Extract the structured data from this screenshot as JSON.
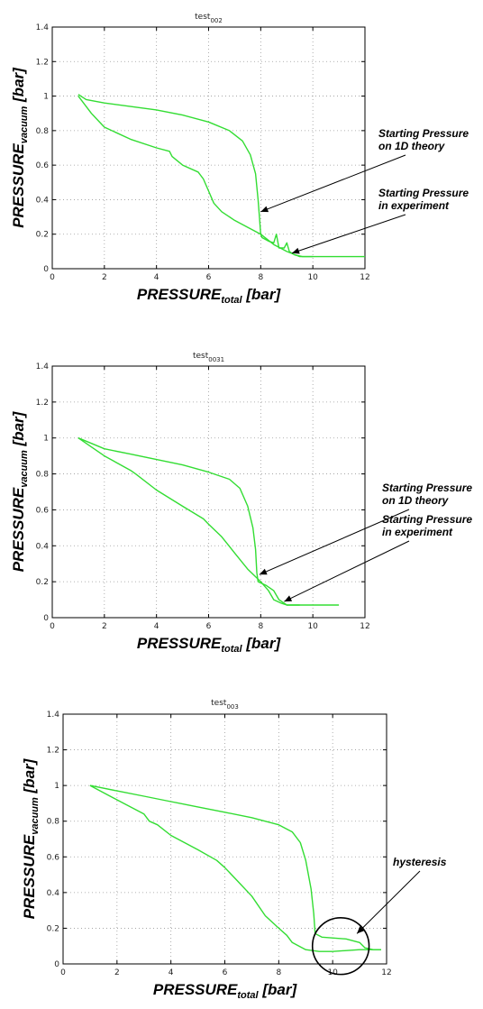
{
  "chart_data": [
    {
      "type": "line",
      "title": "test",
      "title_subscript": "002",
      "xlabel": "PRESSURE",
      "xlabel_subscript": "total",
      "xlabel_unit": " [bar]",
      "ylabel": "PRESSURE",
      "ylabel_subscript": "vacuum",
      "ylabel_unit": " [bar]",
      "xlim": [
        0,
        12
      ],
      "ylim": [
        0,
        1.4
      ],
      "xticks": [
        "0",
        "2",
        "4",
        "6",
        "8",
        "10",
        "12"
      ],
      "yticks": [
        "0",
        "0.2",
        "0.4",
        "0.6",
        "0.8",
        "1",
        "1.2",
        "1.4"
      ],
      "grid": true,
      "series": [
        {
          "color": "#33dd33",
          "points": [
            [
              1.0,
              1.01
            ],
            [
              1.3,
              0.98
            ],
            [
              2.0,
              0.96
            ],
            [
              3.0,
              0.94
            ],
            [
              4.0,
              0.92
            ],
            [
              5.0,
              0.89
            ],
            [
              6.0,
              0.85
            ],
            [
              6.8,
              0.8
            ],
            [
              7.3,
              0.74
            ],
            [
              7.6,
              0.66
            ],
            [
              7.8,
              0.55
            ],
            [
              7.9,
              0.4
            ],
            [
              7.95,
              0.3
            ],
            [
              8.0,
              0.2
            ],
            [
              8.05,
              0.18
            ],
            [
              8.3,
              0.16
            ],
            [
              8.5,
              0.15
            ],
            [
              8.6,
              0.2
            ],
            [
              8.7,
              0.12
            ],
            [
              8.9,
              0.12
            ],
            [
              9.0,
              0.15
            ],
            [
              9.1,
              0.1
            ],
            [
              9.3,
              0.08
            ],
            [
              9.6,
              0.07
            ],
            [
              10.0,
              0.07
            ],
            [
              11.0,
              0.07
            ],
            [
              12.0,
              0.07
            ]
          ]
        },
        {
          "color": "#33dd33",
          "points": [
            [
              1.0,
              1.0
            ],
            [
              1.5,
              0.9
            ],
            [
              2.0,
              0.82
            ],
            [
              3.0,
              0.75
            ],
            [
              4.0,
              0.7
            ],
            [
              4.5,
              0.68
            ],
            [
              4.6,
              0.65
            ],
            [
              5.0,
              0.6
            ],
            [
              5.6,
              0.56
            ],
            [
              5.8,
              0.52
            ],
            [
              6.0,
              0.45
            ],
            [
              6.2,
              0.38
            ],
            [
              6.5,
              0.33
            ],
            [
              7.0,
              0.28
            ],
            [
              7.5,
              0.24
            ],
            [
              8.0,
              0.2
            ],
            [
              8.5,
              0.14
            ],
            [
              9.0,
              0.1
            ],
            [
              9.5,
              0.07
            ],
            [
              10.0,
              0.07
            ]
          ]
        }
      ],
      "annotations": [
        {
          "label": "Starting Pressure\non 1D theory",
          "point": [
            8.0,
            0.33
          ]
        },
        {
          "label": "Starting Pressure\nin experiment",
          "point": [
            9.2,
            0.09
          ]
        }
      ]
    },
    {
      "type": "line",
      "title": "test",
      "title_subscript": "0031",
      "xlabel": "PRESSURE",
      "xlabel_subscript": "total",
      "xlabel_unit": " [bar]",
      "ylabel": "PRESSURE",
      "ylabel_subscript": "vacuum",
      "ylabel_unit": " [bar]",
      "xlim": [
        0,
        12
      ],
      "ylim": [
        0,
        1.4
      ],
      "xticks": [
        "0",
        "2",
        "4",
        "6",
        "8",
        "10",
        "12"
      ],
      "yticks": [
        "0",
        "0.2",
        "0.4",
        "0.6",
        "0.8",
        "1",
        "1.2",
        "1.4"
      ],
      "grid": true,
      "series": [
        {
          "color": "#33dd33",
          "points": [
            [
              1.0,
              1.0
            ],
            [
              1.5,
              0.97
            ],
            [
              2.0,
              0.94
            ],
            [
              3.0,
              0.91
            ],
            [
              4.0,
              0.88
            ],
            [
              5.0,
              0.85
            ],
            [
              6.0,
              0.81
            ],
            [
              6.8,
              0.77
            ],
            [
              7.2,
              0.72
            ],
            [
              7.5,
              0.62
            ],
            [
              7.7,
              0.5
            ],
            [
              7.8,
              0.38
            ],
            [
              7.85,
              0.25
            ],
            [
              7.9,
              0.2
            ],
            [
              8.2,
              0.18
            ],
            [
              8.5,
              0.15
            ],
            [
              8.7,
              0.1
            ],
            [
              9.0,
              0.07
            ],
            [
              9.5,
              0.07
            ],
            [
              10.0,
              0.07
            ],
            [
              11.0,
              0.07
            ]
          ]
        },
        {
          "color": "#33dd33",
          "points": [
            [
              1.0,
              1.0
            ],
            [
              2.0,
              0.9
            ],
            [
              3.0,
              0.82
            ],
            [
              3.2,
              0.8
            ],
            [
              4.0,
              0.71
            ],
            [
              5.0,
              0.62
            ],
            [
              5.8,
              0.55
            ],
            [
              6.0,
              0.52
            ],
            [
              6.5,
              0.45
            ],
            [
              7.0,
              0.36
            ],
            [
              7.5,
              0.27
            ],
            [
              8.0,
              0.2
            ],
            [
              8.3,
              0.15
            ],
            [
              8.5,
              0.1
            ],
            [
              8.8,
              0.08
            ],
            [
              9.0,
              0.07
            ],
            [
              9.5,
              0.07
            ]
          ]
        }
      ],
      "annotations": [
        {
          "label": "Starting Pressure\non 1D theory",
          "point": [
            7.95,
            0.24
          ]
        },
        {
          "label": "Starting Pressure\nin experiment",
          "point": [
            8.9,
            0.09
          ]
        }
      ]
    },
    {
      "type": "line",
      "title": "test",
      "title_subscript": "003",
      "xlabel": "PRESSURE",
      "xlabel_subscript": "total",
      "xlabel_unit": " [bar]",
      "ylabel": "PRESSURE",
      "ylabel_subscript": "vacuum",
      "ylabel_unit": " [bar]",
      "xlim": [
        0,
        12
      ],
      "ylim": [
        0,
        1.4
      ],
      "xticks": [
        "0",
        "2",
        "4",
        "6",
        "8",
        "10",
        "12"
      ],
      "yticks": [
        "0",
        "0.2",
        "0.4",
        "0.6",
        "0.8",
        "1",
        "1.2",
        "1.4"
      ],
      "grid": true,
      "series": [
        {
          "color": "#33dd33",
          "points": [
            [
              1.0,
              1.0
            ],
            [
              2.0,
              0.97
            ],
            [
              3.0,
              0.94
            ],
            [
              4.0,
              0.91
            ],
            [
              5.0,
              0.88
            ],
            [
              6.0,
              0.85
            ],
            [
              7.0,
              0.82
            ],
            [
              8.0,
              0.78
            ],
            [
              8.5,
              0.74
            ],
            [
              8.8,
              0.68
            ],
            [
              9.0,
              0.58
            ],
            [
              9.2,
              0.42
            ],
            [
              9.3,
              0.28
            ],
            [
              9.35,
              0.17
            ],
            [
              9.6,
              0.15
            ],
            [
              10.5,
              0.14
            ],
            [
              11.0,
              0.12
            ],
            [
              11.2,
              0.09
            ],
            [
              11.5,
              0.08
            ],
            [
              11.8,
              0.08
            ]
          ]
        },
        {
          "color": "#33dd33",
          "points": [
            [
              1.0,
              1.0
            ],
            [
              1.5,
              0.96
            ],
            [
              2.0,
              0.92
            ],
            [
              2.5,
              0.88
            ],
            [
              3.0,
              0.84
            ],
            [
              3.2,
              0.8
            ],
            [
              3.5,
              0.78
            ],
            [
              4.0,
              0.72
            ],
            [
              5.0,
              0.64
            ],
            [
              5.7,
              0.58
            ],
            [
              6.0,
              0.54
            ],
            [
              6.5,
              0.46
            ],
            [
              7.0,
              0.38
            ],
            [
              7.5,
              0.27
            ],
            [
              8.0,
              0.2
            ],
            [
              8.3,
              0.16
            ],
            [
              8.5,
              0.12
            ],
            [
              9.0,
              0.08
            ],
            [
              9.5,
              0.07
            ],
            [
              10.0,
              0.07
            ],
            [
              11.0,
              0.08
            ],
            [
              11.8,
              0.08
            ]
          ]
        }
      ],
      "annotations": [
        {
          "label": "hysteresis",
          "point": [
            10.9,
            0.17
          ]
        }
      ],
      "highlight_circle": {
        "center": [
          10.3,
          0.1
        ],
        "radius_x_units": 1.05
      }
    }
  ]
}
